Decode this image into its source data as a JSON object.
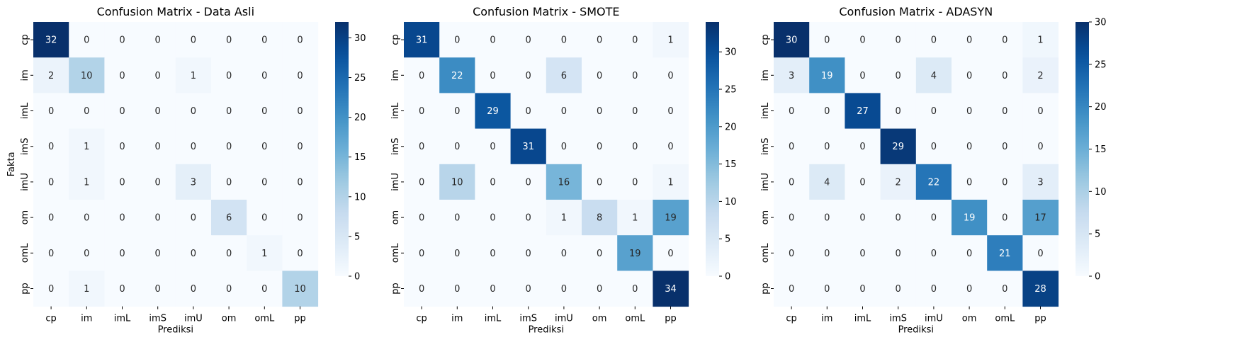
{
  "chart_data": [
    {
      "type": "heatmap",
      "title": "Confusion Matrix - Data Asli",
      "xlabel": "Prediksi",
      "ylabel": "Fakta",
      "x_categories": [
        "cp",
        "im",
        "imL",
        "imS",
        "imU",
        "om",
        "omL",
        "pp"
      ],
      "y_categories": [
        "cp",
        "im",
        "imL",
        "imS",
        "imU",
        "om",
        "omL",
        "pp"
      ],
      "colormap": "Blues",
      "vmin": 0,
      "vmax": 32,
      "colorbar_ticks": [
        0,
        5,
        10,
        15,
        20,
        25,
        30
      ],
      "values": [
        [
          32,
          0,
          0,
          0,
          0,
          0,
          0,
          0
        ],
        [
          2,
          10,
          0,
          0,
          1,
          0,
          0,
          0
        ],
        [
          0,
          0,
          0,
          0,
          0,
          0,
          0,
          0
        ],
        [
          0,
          1,
          0,
          0,
          0,
          0,
          0,
          0
        ],
        [
          0,
          1,
          0,
          0,
          3,
          0,
          0,
          0
        ],
        [
          0,
          0,
          0,
          0,
          0,
          6,
          0,
          0
        ],
        [
          0,
          0,
          0,
          0,
          0,
          0,
          1,
          0
        ],
        [
          0,
          1,
          0,
          0,
          0,
          0,
          0,
          10
        ]
      ]
    },
    {
      "type": "heatmap",
      "title": "Confusion Matrix - SMOTE",
      "xlabel": "Prediksi",
      "ylabel": "",
      "x_categories": [
        "cp",
        "im",
        "imL",
        "imS",
        "imU",
        "om",
        "omL",
        "pp"
      ],
      "y_categories": [
        "cp",
        "im",
        "imL",
        "imS",
        "imU",
        "om",
        "omL",
        "pp"
      ],
      "colormap": "Blues",
      "vmin": 0,
      "vmax": 34,
      "colorbar_ticks": [
        0,
        5,
        10,
        15,
        20,
        25,
        30
      ],
      "values": [
        [
          31,
          0,
          0,
          0,
          0,
          0,
          0,
          1
        ],
        [
          0,
          22,
          0,
          0,
          6,
          0,
          0,
          0
        ],
        [
          0,
          0,
          29,
          0,
          0,
          0,
          0,
          0
        ],
        [
          0,
          0,
          0,
          31,
          0,
          0,
          0,
          0
        ],
        [
          0,
          10,
          0,
          0,
          16,
          0,
          0,
          1
        ],
        [
          0,
          0,
          0,
          0,
          1,
          8,
          1,
          19
        ],
        [
          0,
          0,
          0,
          0,
          0,
          0,
          19,
          0
        ],
        [
          0,
          0,
          0,
          0,
          0,
          0,
          0,
          34
        ]
      ]
    },
    {
      "type": "heatmap",
      "title": "Confusion Matrix - ADASYN",
      "xlabel": "Prediksi",
      "ylabel": "",
      "x_categories": [
        "cp",
        "im",
        "imL",
        "imS",
        "imU",
        "om",
        "omL",
        "pp"
      ],
      "y_categories": [
        "cp",
        "im",
        "imL",
        "imS",
        "imU",
        "om",
        "omL",
        "pp"
      ],
      "colormap": "Blues",
      "vmin": 0,
      "vmax": 30,
      "colorbar_ticks": [
        0,
        5,
        10,
        15,
        20,
        25,
        30
      ],
      "values": [
        [
          30,
          0,
          0,
          0,
          0,
          0,
          0,
          1
        ],
        [
          3,
          19,
          0,
          0,
          4,
          0,
          0,
          2
        ],
        [
          0,
          0,
          27,
          0,
          0,
          0,
          0,
          0
        ],
        [
          0,
          0,
          0,
          29,
          0,
          0,
          0,
          0
        ],
        [
          0,
          4,
          0,
          2,
          22,
          0,
          0,
          3
        ],
        [
          0,
          0,
          0,
          0,
          0,
          19,
          0,
          17
        ],
        [
          0,
          0,
          0,
          0,
          0,
          0,
          21,
          0
        ],
        [
          0,
          0,
          0,
          0,
          0,
          0,
          0,
          28
        ]
      ]
    }
  ]
}
